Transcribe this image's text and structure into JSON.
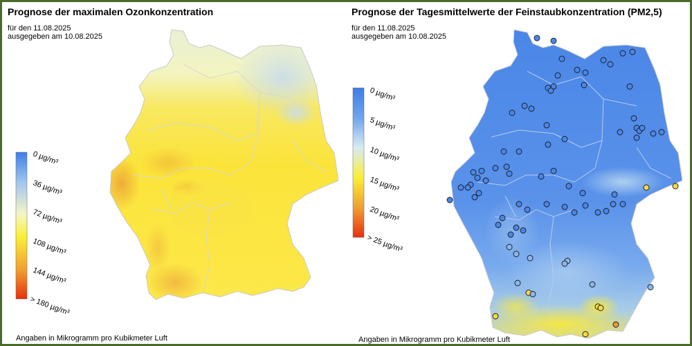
{
  "ozone": {
    "title": "Prognose der maximalen Ozonkonzentration",
    "date_line": "für den 11.08.2025",
    "issued_line": "ausgegeben am 10.08.2025",
    "footer": "Angaben in Mikrogramm pro Kubikmeter Luft",
    "legend": [
      "0  µg/m³",
      "36  µg/m³",
      "72  µg/m³",
      "108  µg/m³",
      "144  µg/m³",
      "> 180  µg/m³"
    ],
    "legend_colors": [
      "#3e7ee8",
      "#9ec4ef",
      "#f4f6c8",
      "#fbee35",
      "#f0a030",
      "#e83010"
    ]
  },
  "pm25": {
    "title": "Prognose der Tagesmittelwerte der Feinstaubkonzentration (PM2,5)",
    "date_line": "für den 11.08.2025",
    "issued_line": "ausgegeben am 10.08.2025",
    "footer": "Angaben in Mikrogramm pro Kubikmeter Luft",
    "legend": [
      "0  µg/m³",
      "5  µg/m³",
      "10  µg/m³",
      "15  µg/m³",
      "20  µg/m³",
      "> 25  µg/m³"
    ],
    "legend_colors": [
      "#3e7ee8",
      "#6fa4ee",
      "#d8ecf4",
      "#fbee35",
      "#f0a030",
      "#e83010"
    ]
  }
}
